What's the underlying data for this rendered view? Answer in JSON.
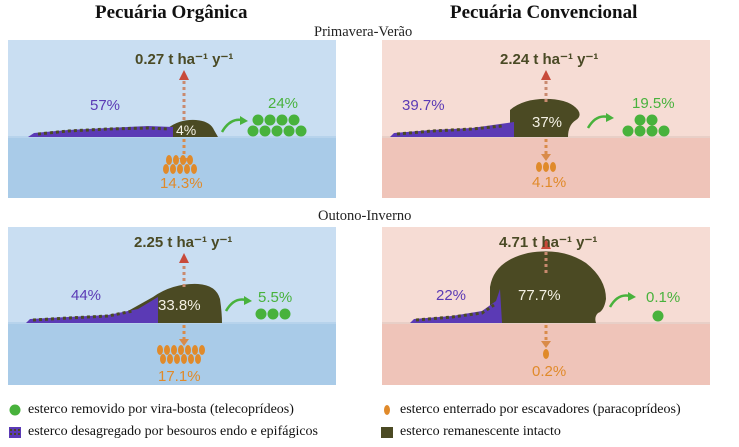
{
  "headers": {
    "organic": "Pecuária Orgânica",
    "conventional": "Pecuária Convencional"
  },
  "seasons": {
    "spring_summer": "Primavera-Verão",
    "autumn_winter": "Outono-Inverno"
  },
  "panels": {
    "org_ss": {
      "rate": "0.27 t ha⁻¹ y⁻¹",
      "disaggregated": "57%",
      "intact": "4%",
      "removed": "24%",
      "buried": "14.3%"
    },
    "conv_ss": {
      "rate": "2.24 t ha⁻¹ y⁻¹",
      "disaggregated": "39.7%",
      "intact": "37%",
      "removed": "19.5%",
      "buried": "4.1%"
    },
    "org_aw": {
      "rate": "2.25 t ha⁻¹ y⁻¹",
      "disaggregated": "44%",
      "intact": "33.8%",
      "removed": "5.5%",
      "buried": "17.1%"
    },
    "conv_aw": {
      "rate": "4.71 t ha⁻¹ y⁻¹",
      "disaggregated": "22%",
      "intact": "77.7%",
      "removed": "0.1%",
      "buried": "0.2%"
    }
  },
  "legend": {
    "removed": "esterco removido por vira-bosta (telecoprídeos)",
    "buried": "esterco enterrado por escavadores (paracoprídeos)",
    "disaggregated": "esterco desagregado por besouros endo e epifágicos",
    "intact": "esterco remanescente intacto"
  },
  "colors": {
    "organic_sky": "#c9def2",
    "organic_soil": "#a9cbe8",
    "conventional_sky": "#f6dcd4",
    "conventional_soil": "#efc4b9",
    "dung": "#4b4a23",
    "green": "#48b23c",
    "orange": "#e08a2a",
    "purple": "#5b3ab5"
  }
}
